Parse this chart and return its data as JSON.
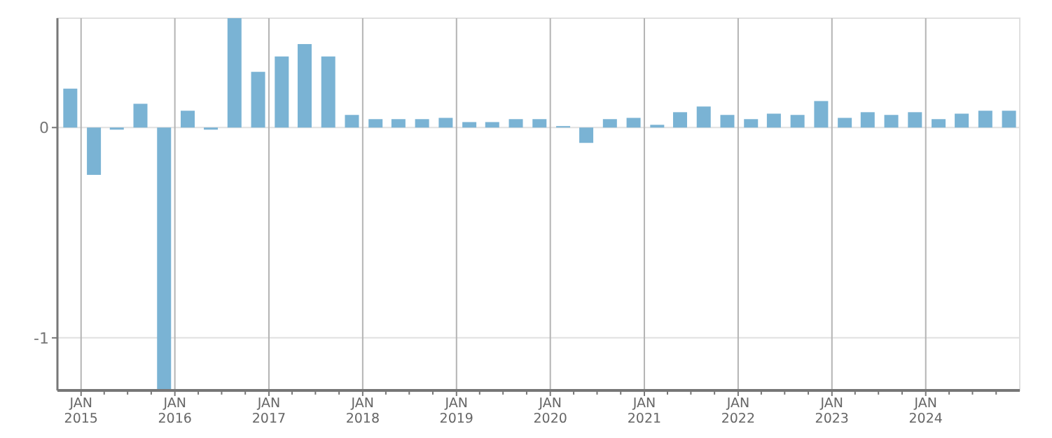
{
  "chart_data": {
    "type": "bar",
    "x": [
      "2014-11-20",
      "2015-02-20",
      "2015-05-20",
      "2015-08-20",
      "2015-11-20",
      "2016-02-20",
      "2016-05-20",
      "2016-08-20",
      "2016-11-20",
      "2017-02-20",
      "2017-05-20",
      "2017-08-20",
      "2017-11-20",
      "2018-02-20",
      "2018-05-20",
      "2018-08-20",
      "2018-11-20",
      "2019-02-20",
      "2019-05-20",
      "2019-08-20",
      "2019-11-20",
      "2020-02-20",
      "2020-05-20",
      "2020-08-20",
      "2020-11-20",
      "2021-02-20",
      "2021-05-20",
      "2021-08-20",
      "2021-11-20",
      "2022-02-20",
      "2022-05-20",
      "2022-08-20",
      "2022-11-20",
      "2023-02-20",
      "2023-05-20",
      "2023-08-20",
      "2023-11-20",
      "2024-02-20",
      "2024-05-20",
      "2024-08-20",
      "2024-11-20"
    ],
    "values": [
      0.185,
      -0.225,
      -0.01,
      0.113,
      -1.25,
      0.08,
      -0.01,
      0.52,
      0.265,
      0.338,
      0.397,
      0.338,
      0.06,
      0.04,
      0.04,
      0.04,
      0.046,
      0.026,
      0.026,
      0.04,
      0.04,
      0.007,
      -0.073,
      0.04,
      0.046,
      0.013,
      0.073,
      0.1,
      0.06,
      0.04,
      0.066,
      0.06,
      0.126,
      0.046,
      0.073,
      0.06,
      0.073,
      0.04,
      0.066,
      0.08,
      0.08
    ],
    "color": "#7ab3d4",
    "xlim": [
      "2014-10-01",
      "2025-01-01"
    ],
    "xticks": [
      {
        "value": "2015-01-01",
        "label": "JAN 2015"
      },
      {
        "value": "2015-04-01",
        "label": null
      },
      {
        "value": "2015-07-01",
        "label": null
      },
      {
        "value": "2015-10-01",
        "label": null
      },
      {
        "value": "2016-01-01",
        "label": "JAN 2016"
      },
      {
        "value": "2016-04-01",
        "label": null
      },
      {
        "value": "2016-07-01",
        "label": null
      },
      {
        "value": "2016-10-01",
        "label": null
      },
      {
        "value": "2017-01-01",
        "label": "JAN 2017"
      },
      {
        "value": "2017-04-01",
        "label": null
      },
      {
        "value": "2017-07-01",
        "label": null
      },
      {
        "value": "2017-10-01",
        "label": null
      },
      {
        "value": "2018-01-01",
        "label": "JAN 2018"
      },
      {
        "value": "2018-04-01",
        "label": null
      },
      {
        "value": "2018-07-01",
        "label": null
      },
      {
        "value": "2018-10-01",
        "label": null
      },
      {
        "value": "2019-01-01",
        "label": "JAN 2019"
      },
      {
        "value": "2019-04-01",
        "label": null
      },
      {
        "value": "2019-07-01",
        "label": null
      },
      {
        "value": "2019-10-01",
        "label": null
      },
      {
        "value": "2020-01-01",
        "label": "JAN 2020"
      },
      {
        "value": "2020-04-01",
        "label": null
      },
      {
        "value": "2020-07-01",
        "label": null
      },
      {
        "value": "2020-10-01",
        "label": null
      },
      {
        "value": "2021-01-01",
        "label": "JAN 2021"
      },
      {
        "value": "2021-04-01",
        "label": null
      },
      {
        "value": "2021-07-01",
        "label": null
      },
      {
        "value": "2021-10-01",
        "label": null
      },
      {
        "value": "2022-01-01",
        "label": "JAN 2022"
      },
      {
        "value": "2022-04-01",
        "label": null
      },
      {
        "value": "2022-07-01",
        "label": null
      },
      {
        "value": "2022-10-01",
        "label": null
      },
      {
        "value": "2023-01-01",
        "label": "JAN 2023"
      },
      {
        "value": "2023-04-01",
        "label": null
      },
      {
        "value": "2023-07-01",
        "label": null
      },
      {
        "value": "2023-10-01",
        "label": null
      },
      {
        "value": "2024-01-01",
        "label": "JAN 2024"
      },
      {
        "value": "2024-04-01",
        "label": null
      },
      {
        "value": "2024-07-01",
        "label": null
      },
      {
        "value": "2024-10-01",
        "label": null
      }
    ],
    "ylim": [
      -1.25,
      0.52
    ],
    "yticks": [
      -1,
      0
    ],
    "grid": true
  }
}
